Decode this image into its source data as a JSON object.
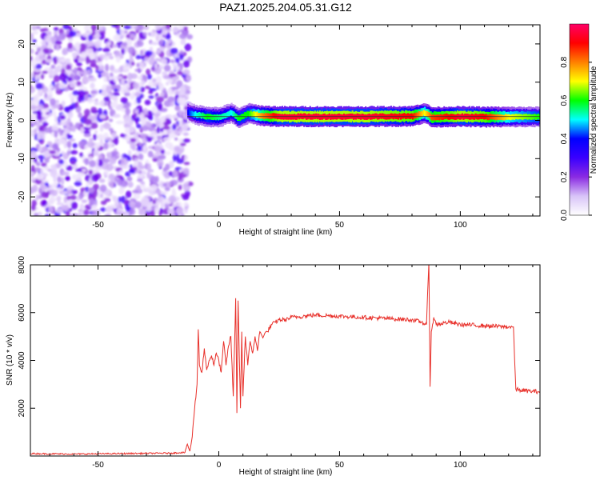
{
  "figure": {
    "title": "PAZ1.2025.204.05.31.G12"
  },
  "chart_data": [
    {
      "type": "heatmap",
      "title": "PAZ1.2025.204.05.31.G12",
      "xlabel": "Height of straight line (km)",
      "ylabel": "Frequency (Hz)",
      "xlim": [
        -78,
        133
      ],
      "ylim": [
        -25,
        25
      ],
      "xticks": [
        -50,
        0,
        50,
        100
      ],
      "yticks": [
        -20,
        -10,
        0,
        10,
        20
      ],
      "colorbar": {
        "label": "Normalized spectral amplitude",
        "range": [
          0,
          1
        ],
        "ticks": [
          "0.0",
          "0.2",
          "0.4",
          "0.6",
          "0.8"
        ],
        "colormap": [
          "#ffffff",
          "#d8c4f8",
          "#8a2be2",
          "#3a00ff",
          "#0000ff",
          "#00ffff",
          "#00ff00",
          "#ffff00",
          "#ff8000",
          "#ff0000",
          "#ff0066"
        ]
      },
      "noise_region": {
        "x_from": -78,
        "x_to": -14,
        "freq_range": [
          -25,
          25
        ]
      },
      "signal_band": {
        "x": [
          -13,
          -10,
          -5,
          0,
          5,
          8,
          12,
          18,
          25,
          40,
          60,
          80,
          85,
          88,
          95,
          100,
          110,
          120,
          133
        ],
        "freq": [
          2.2,
          1.5,
          1.0,
          0.8,
          2.0,
          0.5,
          1.8,
          1.2,
          1.0,
          1.0,
          1.0,
          1.1,
          2.0,
          0.8,
          1.0,
          1.0,
          0.9,
          0.9,
          0.9
        ],
        "amplitude": [
          0.4,
          0.5,
          0.6,
          0.55,
          0.5,
          0.6,
          0.6,
          0.8,
          0.95,
          0.95,
          0.95,
          0.9,
          0.7,
          0.85,
          0.9,
          0.95,
          0.9,
          0.7,
          0.6
        ]
      }
    },
    {
      "type": "line",
      "xlabel": "Height of straight line (km)",
      "ylabel": "SNR (10 * v/v)",
      "xlim": [
        -78,
        133
      ],
      "ylim": [
        0,
        8000
      ],
      "xticks": [
        -50,
        0,
        50,
        100
      ],
      "yticks": [
        2000,
        4000,
        6000,
        8000
      ],
      "line_color": "#e8302a",
      "series": [
        {
          "x": [
            -78,
            -60,
            -40,
            -20,
            -14,
            -13,
            -12,
            -11,
            -10,
            -9,
            -8.5,
            -8,
            -7,
            -6,
            -5,
            -4,
            -3,
            -2,
            -1,
            0,
            1,
            2,
            3,
            4,
            5,
            6,
            7,
            7.5,
            8,
            9,
            9.5,
            10,
            11,
            12,
            13,
            14,
            15,
            16,
            17,
            18,
            20,
            22,
            25,
            28,
            30,
            35,
            40,
            50,
            60,
            70,
            80,
            84,
            86,
            87,
            87.5,
            88,
            89,
            90,
            95,
            100,
            110,
            120,
            122,
            122.5,
            123,
            125,
            130,
            133
          ],
          "y": [
            100,
            80,
            100,
            120,
            150,
            500,
            200,
            800,
            2000,
            3000,
            5300,
            3800,
            3500,
            4500,
            3600,
            4000,
            4200,
            3800,
            4300,
            4000,
            3500,
            4800,
            3800,
            4600,
            5000,
            2500,
            6600,
            1800,
            6500,
            2000,
            5200,
            2500,
            5000,
            3800,
            4800,
            4300,
            5000,
            4400,
            5200,
            5000,
            5200,
            5500,
            5700,
            5700,
            5800,
            5850,
            5900,
            5850,
            5800,
            5750,
            5700,
            5600,
            5500,
            8100,
            2900,
            5200,
            5800,
            5500,
            5600,
            5500,
            5450,
            5400,
            5400,
            4000,
            2800,
            2750,
            2700,
            2700
          ]
        }
      ]
    }
  ]
}
